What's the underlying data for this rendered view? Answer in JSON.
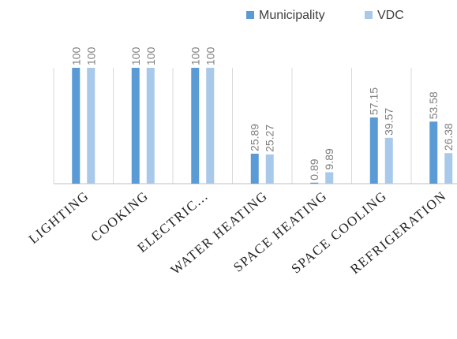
{
  "chart_data": {
    "type": "bar",
    "categories": [
      "LIGHTING",
      "COOKING",
      "ELECTRIC...",
      "WATER HEATING",
      "SPACE HEATING",
      "SPACE COOLING",
      "REFRIGERATION"
    ],
    "series": [
      {
        "name": "Municipality",
        "color": "#5b9bd5",
        "values": [
          100,
          100,
          100,
          25.89,
          0.89,
          57.15,
          53.58
        ]
      },
      {
        "name": "VDC",
        "color": "#a9c9ea",
        "values": [
          100,
          100,
          100,
          25.27,
          9.89,
          39.57,
          26.38
        ]
      }
    ],
    "data_labels": {
      "Municipality": [
        "100",
        "100",
        "100",
        "25.89",
        "0.89",
        "57.15",
        "53.58"
      ],
      "VDC": [
        "100",
        "100",
        "100",
        "25.27",
        "9.89",
        "39.57",
        "26.38"
      ]
    },
    "ylim": [
      0,
      100
    ],
    "grid": "vertical-separators",
    "legend_position": "top-right",
    "colors": {
      "gridline": "#d9d9d9",
      "axis": "#bfbfbf"
    }
  }
}
